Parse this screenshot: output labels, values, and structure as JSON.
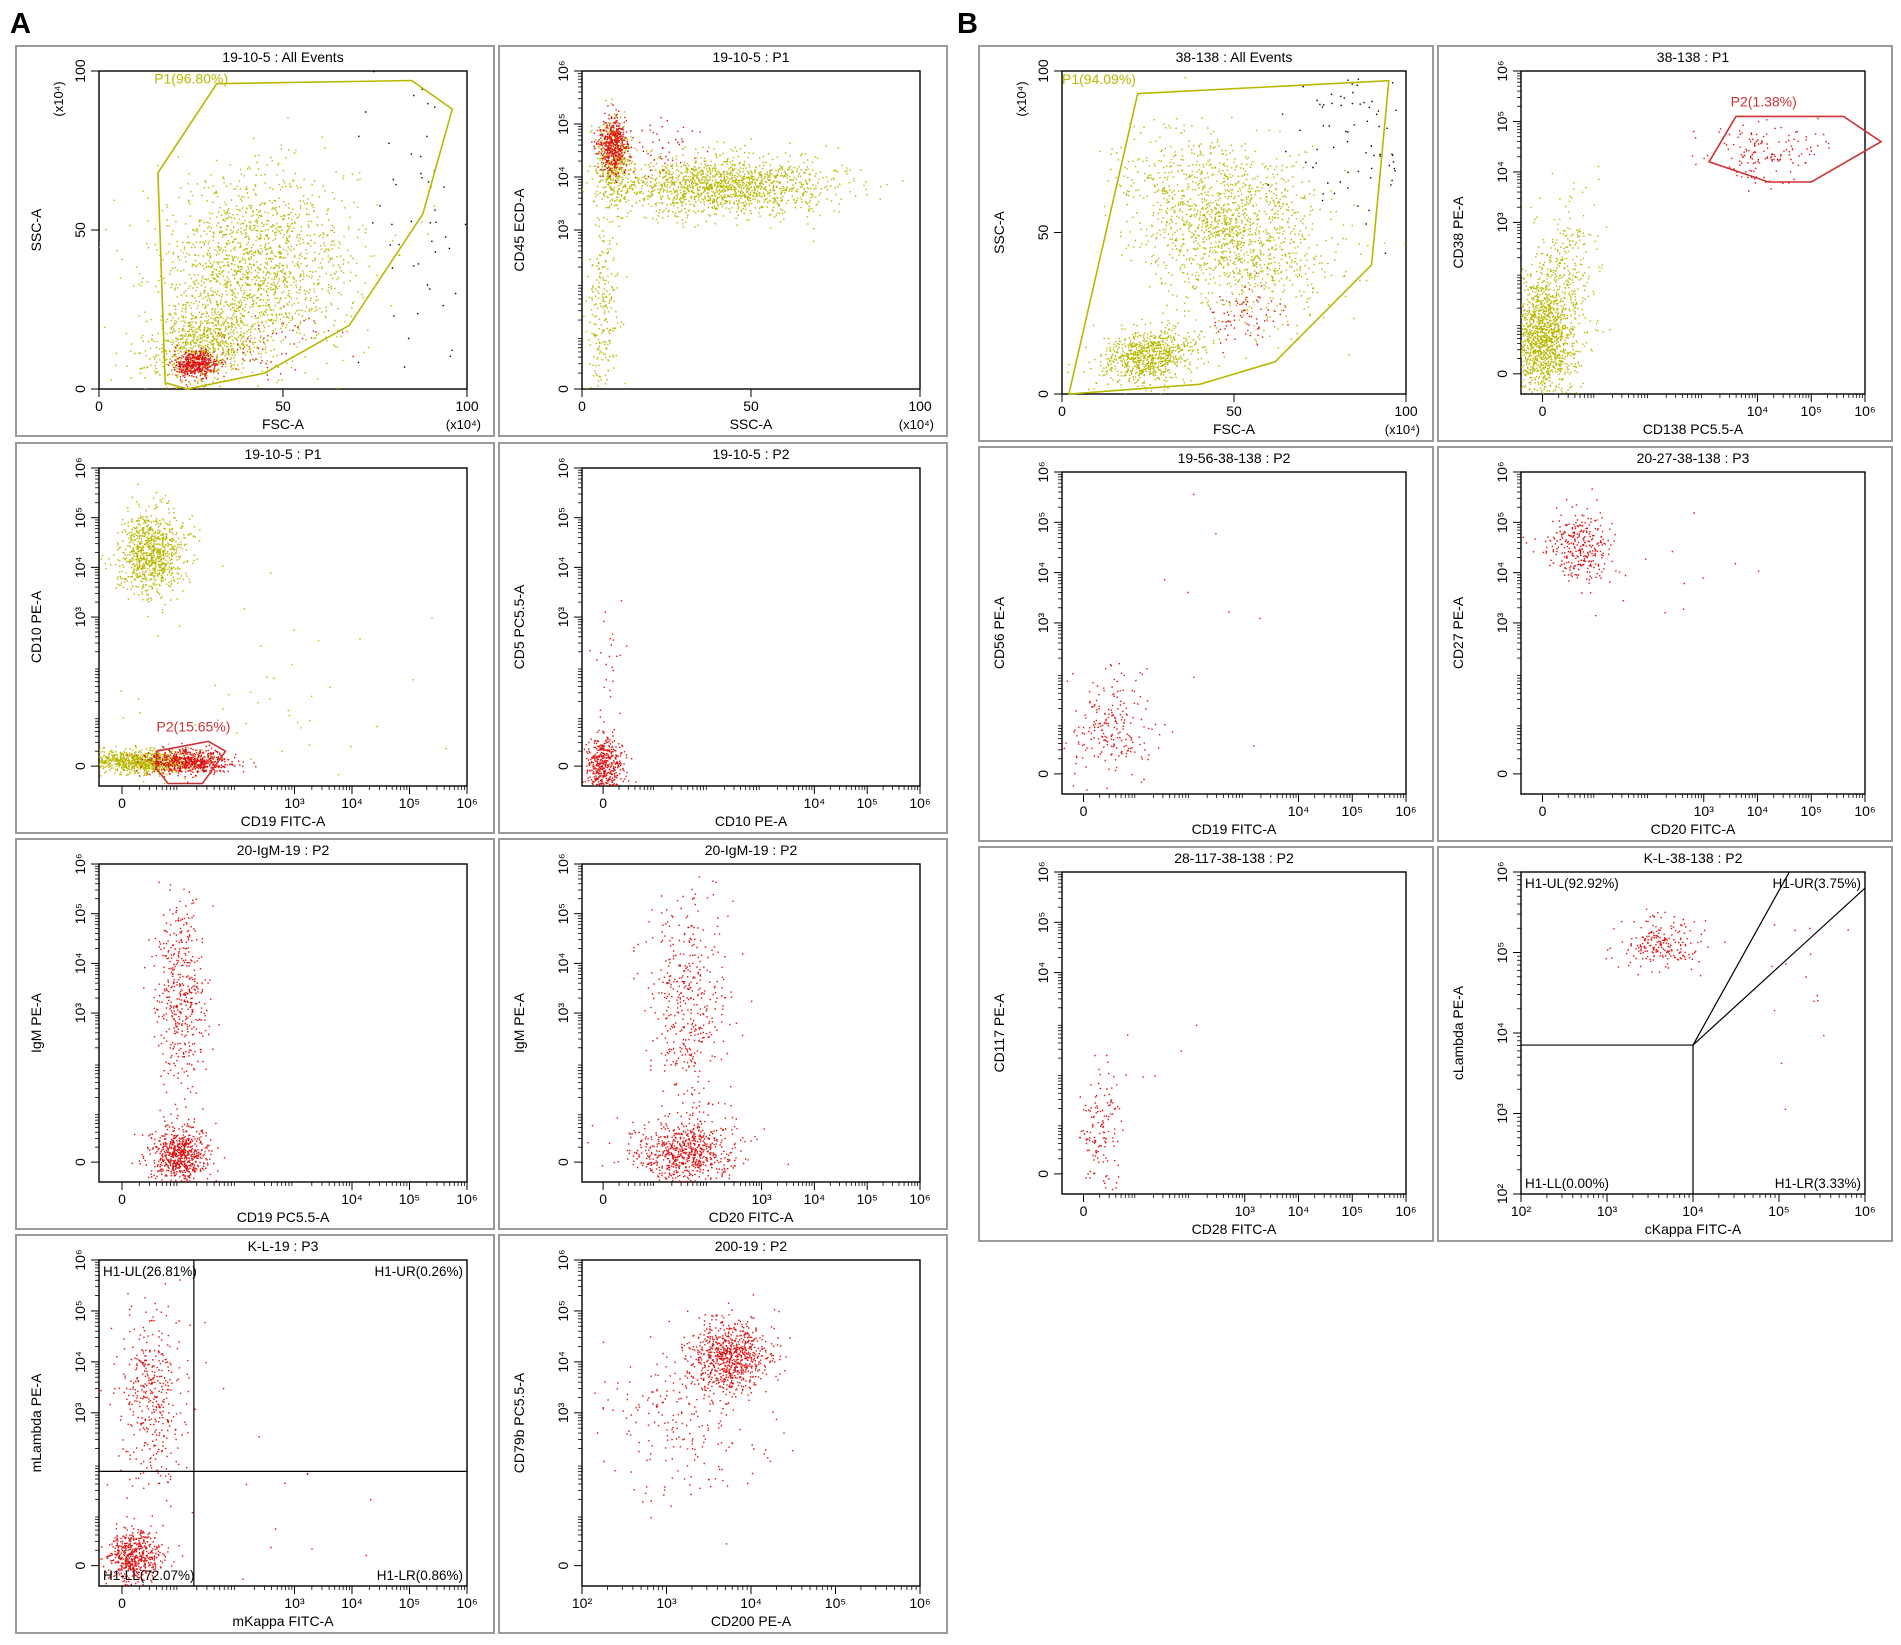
{
  "figure": {
    "label_a": "A",
    "label_b": "B"
  },
  "colors": {
    "yellow": "#b8b800",
    "red": "#e01010",
    "gate_red": "#cc3333",
    "black": "#000000"
  },
  "chart_data": [
    {
      "id": "a1",
      "type": "scatter",
      "title": "19-10-5 : All Events",
      "xlabel": "FSC-A",
      "ylabel": "SSC-A",
      "scale": "lin",
      "xunit": "(x10⁴)",
      "yunit": "(x10⁴)",
      "xticks": [
        "0",
        "50",
        "100"
      ],
      "yticks": [
        "0",
        "50",
        "100"
      ],
      "xlim": [
        0,
        100
      ],
      "ylim": [
        0,
        100
      ],
      "clusters": [
        {
          "color": "yellow",
          "cx": 42,
          "cy": 38,
          "sx": 14,
          "sy": 14,
          "n": 1700,
          "rot": 0.75
        },
        {
          "color": "yellow",
          "cx": 28,
          "cy": 14,
          "sx": 8,
          "sy": 6,
          "n": 700,
          "rot": 0.3
        },
        {
          "color": "red",
          "cx": 26,
          "cy": 8,
          "sx": 3,
          "sy": 2,
          "n": 450,
          "rot": 0
        },
        {
          "color": "red",
          "cx": 45,
          "cy": 15,
          "sx": 9,
          "sy": 4,
          "n": 60,
          "rot": 0.3
        },
        {
          "color": "black",
          "cx": 85,
          "cy": 55,
          "sx": 8,
          "sy": 25,
          "n": 50,
          "rot": 0
        }
      ],
      "gates": [
        {
          "color": "yellow",
          "name": "P1(96.80%)",
          "label_at": [
            15,
            96
          ],
          "points": [
            [
              18,
              2
            ],
            [
              16,
              68
            ],
            [
              32,
              96
            ],
            [
              85,
              97
            ],
            [
              96,
              88
            ],
            [
              88,
              55
            ],
            [
              68,
              20
            ],
            [
              45,
              5
            ],
            [
              24,
              0
            ]
          ]
        }
      ]
    },
    {
      "id": "a2",
      "type": "scatter",
      "title": "19-10-5 : P1",
      "xlabel": "SSC-A",
      "ylabel": "CD45 ECD-A",
      "scale": "lin-log",
      "xunit": "(x10⁴)",
      "xticks": [
        "0",
        "50",
        "100"
      ],
      "yticks": [
        "0",
        "10³",
        "10⁴",
        "10⁵",
        "10⁶"
      ],
      "xlim": [
        0,
        100
      ],
      "ylim": [
        0,
        6
      ],
      "clusters": [
        {
          "color": "yellow",
          "cx": 40,
          "cy": 3.85,
          "sx": 16,
          "sy": 0.28,
          "n": 1500,
          "rot": 0
        },
        {
          "color": "yellow",
          "cx": 9,
          "cy": 4.3,
          "sx": 3,
          "sy": 0.4,
          "n": 400,
          "rot": 0
        },
        {
          "color": "yellow",
          "cx": 6,
          "cy": 1.5,
          "sx": 2.5,
          "sy": 1.0,
          "n": 250,
          "rot": 0
        },
        {
          "color": "red",
          "cx": 9,
          "cy": 4.6,
          "sx": 2.2,
          "sy": 0.26,
          "n": 450,
          "rot": 0
        },
        {
          "color": "red",
          "cx": 22,
          "cy": 4.6,
          "sx": 6,
          "sy": 0.25,
          "n": 50,
          "rot": 0
        }
      ],
      "gates": []
    },
    {
      "id": "a3",
      "type": "scatter",
      "title": "19-10-5 : P1",
      "xlabel": "CD19 FITC-A",
      "ylabel": "CD10 PE-A",
      "scale": "log",
      "xticks": [
        "0",
        "10³",
        "10⁴",
        "10⁵",
        "10⁶"
      ],
      "yticks": [
        "0",
        "10³",
        "10⁴",
        "10⁵",
        "10⁶"
      ],
      "xlim": [
        -0.4,
        6
      ],
      "ylim": [
        -0.4,
        6
      ],
      "clusters": [
        {
          "color": "yellow",
          "cx": 0.5,
          "cy": 4.3,
          "sx": 0.28,
          "sy": 0.42,
          "n": 900,
          "rot": 0
        },
        {
          "color": "yellow",
          "cx": 0.3,
          "cy": 0.1,
          "sx": 0.45,
          "sy": 0.12,
          "n": 900,
          "rot": 0
        },
        {
          "color": "red",
          "cx": 1.2,
          "cy": 0.1,
          "sx": 0.35,
          "sy": 0.12,
          "n": 600,
          "rot": 0
        },
        {
          "color": "yellow",
          "cx": 2.5,
          "cy": 1.5,
          "sx": 1.2,
          "sy": 1.1,
          "n": 40,
          "rot": 0
        }
      ],
      "gates": [
        {
          "color": "gate_red",
          "name": "P2(15.65%)",
          "label_at": [
            0.6,
            0.7
          ],
          "points": [
            [
              0.6,
              0.3
            ],
            [
              1.5,
              0.5
            ],
            [
              1.8,
              0.3
            ],
            [
              1.4,
              -0.35
            ],
            [
              0.8,
              -0.35
            ],
            [
              0.6,
              -0.05
            ]
          ]
        }
      ]
    },
    {
      "id": "a4",
      "type": "scatter",
      "title": "19-10-5 : P2",
      "xlabel": "CD10 PE-A",
      "ylabel": "CD5 PC5.5-A",
      "scale": "log",
      "xticks": [
        "0",
        "10⁴",
        "10⁵",
        "10⁶"
      ],
      "yticks": [
        "0",
        "10³",
        "10⁴",
        "10⁵",
        "10⁶"
      ],
      "xlim": [
        -0.4,
        6
      ],
      "ylim": [
        -0.4,
        6
      ],
      "clusters": [
        {
          "color": "red",
          "cx": 0.0,
          "cy": 0.0,
          "sx": 0.18,
          "sy": 0.3,
          "n": 450,
          "rot": 0
        },
        {
          "color": "red",
          "cx": 0.1,
          "cy": 2.0,
          "sx": 0.15,
          "sy": 0.6,
          "n": 25,
          "rot": 0
        }
      ],
      "gates": []
    },
    {
      "id": "a5",
      "type": "scatter",
      "title": "20-IgM-19 : P2",
      "xlabel": "CD19 PC5.5-A",
      "ylabel": "IgM PE-A",
      "scale": "log",
      "xticks": [
        "0",
        "10⁴",
        "10⁵",
        "10⁶"
      ],
      "yticks": [
        "0",
        "10³",
        "10⁴",
        "10⁵",
        "10⁶"
      ],
      "xlim": [
        -0.4,
        6
      ],
      "ylim": [
        -0.4,
        6
      ],
      "clusters": [
        {
          "color": "red",
          "cx": 1.0,
          "cy": 0.15,
          "sx": 0.25,
          "sy": 0.3,
          "n": 650,
          "rot": 0
        },
        {
          "color": "red",
          "cx": 1.0,
          "cy": 3.4,
          "sx": 0.22,
          "sy": 1.0,
          "n": 450,
          "rot": 0
        }
      ],
      "gates": []
    },
    {
      "id": "a6",
      "type": "scatter",
      "title": "20-IgM-19 : P2",
      "xlabel": "CD20 FITC-A",
      "ylabel": "IgM PE-A",
      "scale": "log",
      "xticks": [
        "0",
        "10³",
        "10⁴",
        "10⁵",
        "10⁶"
      ],
      "yticks": [
        "0",
        "10³",
        "10⁴",
        "10⁵",
        "10⁶"
      ],
      "xlim": [
        -0.4,
        6
      ],
      "ylim": [
        -0.4,
        6
      ],
      "clusters": [
        {
          "color": "red",
          "cx": 1.55,
          "cy": 0.2,
          "sx": 0.5,
          "sy": 0.32,
          "n": 700,
          "rot": 0
        },
        {
          "color": "red",
          "cx": 1.6,
          "cy": 3.2,
          "sx": 0.4,
          "sy": 1.1,
          "n": 450,
          "rot": 0
        }
      ],
      "gates": []
    },
    {
      "id": "a7",
      "type": "scatter",
      "title": "K-L-19 : P3",
      "xlabel": "mKappa FITC-A",
      "ylabel": "mLambda PE-A",
      "scale": "log",
      "xticks": [
        "0",
        "10³",
        "10⁴",
        "10⁵",
        "10⁶"
      ],
      "yticks": [
        "0",
        "10³",
        "10⁴",
        "10⁵",
        "10⁶"
      ],
      "xlim": [
        -0.4,
        6
      ],
      "ylim": [
        -0.4,
        6
      ],
      "clusters": [
        {
          "color": "red",
          "cx": 0.2,
          "cy": 0.2,
          "sx": 0.25,
          "sy": 0.28,
          "n": 550,
          "rot": 0
        },
        {
          "color": "red",
          "cx": 0.5,
          "cy": 3.3,
          "sx": 0.3,
          "sy": 0.9,
          "n": 400,
          "rot": 0
        },
        {
          "color": "red",
          "cx": 2.8,
          "cy": 0.8,
          "sx": 0.9,
          "sy": 0.8,
          "n": 12,
          "rot": 0
        }
      ],
      "quad": {
        "type": "cross",
        "x": 1.25,
        "y": 1.85,
        "labels": {
          "UL": "H1-UL(26.81%)",
          "UR": "H1-UR(0.26%)",
          "LL": "H1-LL(72.07%)",
          "LR": "H1-LR(0.86%)"
        }
      }
    },
    {
      "id": "a8",
      "type": "scatter",
      "title": "200-19 : P2",
      "xlabel": "CD200 PE-A",
      "ylabel": "CD79b PC5.5-A",
      "scale": "log",
      "xticks": [
        "10²",
        "10³",
        "10⁴",
        "10⁵",
        "10⁶"
      ],
      "yticks": [
        "0",
        "10³",
        "10⁴",
        "10⁵",
        "10⁶"
      ],
      "xlim": [
        2,
        6
      ],
      "ylim": [
        -0.4,
        6
      ],
      "clusters": [
        {
          "color": "red",
          "cx": 3.75,
          "cy": 4.1,
          "sx": 0.25,
          "sy": 0.35,
          "n": 800,
          "rot": 0.3
        },
        {
          "color": "red",
          "cx": 3.2,
          "cy": 2.8,
          "sx": 0.45,
          "sy": 0.8,
          "n": 220,
          "rot": 0.6
        }
      ],
      "gates": []
    },
    {
      "id": "b1",
      "type": "scatter",
      "title": "38-138 : All Events",
      "xlabel": "FSC-A",
      "ylabel": "SSC-A",
      "scale": "lin",
      "xunit": "(x10⁴)",
      "yunit": "(x10⁴)",
      "xticks": [
        "0",
        "50",
        "100"
      ],
      "yticks": [
        "0",
        "50",
        "100"
      ],
      "xlim": [
        0,
        100
      ],
      "ylim": [
        0,
        100
      ],
      "clusters": [
        {
          "color": "yellow",
          "cx": 48,
          "cy": 52,
          "sx": 11,
          "sy": 16,
          "n": 1600,
          "rot": 1.0
        },
        {
          "color": "yellow",
          "cx": 25,
          "cy": 12,
          "sx": 7,
          "sy": 4,
          "n": 800,
          "rot": 0.2
        },
        {
          "color": "red",
          "cx": 52,
          "cy": 24,
          "sx": 6,
          "sy": 5,
          "n": 80,
          "rot": 0
        },
        {
          "color": "black",
          "cx": 85,
          "cy": 80,
          "sx": 10,
          "sy": 12,
          "n": 80,
          "rot": 0
        }
      ],
      "gates": [
        {
          "color": "yellow",
          "name": "P1(94.09%)",
          "label_at": [
            0,
            96
          ],
          "points": [
            [
              2,
              0
            ],
            [
              22,
              93
            ],
            [
              95,
              97
            ],
            [
              90,
              40
            ],
            [
              62,
              10
            ],
            [
              40,
              3
            ]
          ]
        }
      ]
    },
    {
      "id": "b2",
      "type": "scatter",
      "title": "38-138 : P1",
      "xlabel": "CD138 PC5.5-A",
      "ylabel": "CD38 PE-A",
      "scale": "log",
      "xticks": [
        "0",
        "10⁴",
        "10⁵",
        "10⁶"
      ],
      "yticks": [
        "0",
        "10³",
        "10⁴",
        "10⁵",
        "10⁶"
      ],
      "xlim": [
        -0.4,
        6
      ],
      "ylim": [
        -0.4,
        6
      ],
      "clusters": [
        {
          "color": "yellow",
          "cx": 0.0,
          "cy": 0.7,
          "sx": 0.3,
          "sy": 0.6,
          "n": 1300,
          "rot": 0
        },
        {
          "color": "yellow",
          "cx": 0.4,
          "cy": 1.9,
          "sx": 0.3,
          "sy": 0.9,
          "n": 300,
          "rot": 0
        },
        {
          "color": "red",
          "cx": 4.1,
          "cy": 4.4,
          "sx": 0.5,
          "sy": 0.3,
          "n": 150,
          "rot": 0
        }
      ],
      "gates": [
        {
          "color": "gate_red",
          "name": "P2(1.38%)",
          "label_at": [
            3.5,
            5.3
          ],
          "points": [
            [
              3.1,
              4.2
            ],
            [
              3.6,
              5.1
            ],
            [
              5.6,
              5.1
            ],
            [
              6.3,
              4.6
            ],
            [
              5.0,
              3.8
            ],
            [
              4.2,
              3.8
            ]
          ]
        }
      ]
    },
    {
      "id": "b3",
      "type": "scatter",
      "title": "19-56-38-138 : P2",
      "xlabel": "CD19 FITC-A",
      "ylabel": "CD56 PE-A",
      "scale": "log",
      "xticks": [
        "0",
        "10⁴",
        "10⁵",
        "10⁶"
      ],
      "yticks": [
        "0",
        "10³",
        "10⁴",
        "10⁵",
        "10⁶"
      ],
      "xlim": [
        -0.4,
        6
      ],
      "ylim": [
        -0.4,
        6
      ],
      "clusters": [
        {
          "color": "red",
          "cx": 0.5,
          "cy": 0.9,
          "sx": 0.4,
          "sy": 0.5,
          "n": 220,
          "rot": 0
        },
        {
          "color": "red",
          "cx": 2.5,
          "cy": 3.5,
          "sx": 1.5,
          "sy": 1.5,
          "n": 8,
          "rot": 0
        }
      ],
      "gates": []
    },
    {
      "id": "b4",
      "type": "scatter",
      "title": "20-27-38-138 : P3",
      "xlabel": "CD20 FITC-A",
      "ylabel": "CD27 PE-A",
      "scale": "log",
      "xticks": [
        "0",
        "10³",
        "10⁴",
        "10⁵",
        "10⁶"
      ],
      "yticks": [
        "0",
        "10³",
        "10⁴",
        "10⁵",
        "10⁶"
      ],
      "xlim": [
        -0.4,
        6
      ],
      "ylim": [
        -0.4,
        6
      ],
      "clusters": [
        {
          "color": "red",
          "cx": 0.7,
          "cy": 4.5,
          "sx": 0.3,
          "sy": 0.35,
          "n": 300,
          "rot": 0
        },
        {
          "color": "red",
          "cx": 1.8,
          "cy": 4.0,
          "sx": 0.9,
          "sy": 0.6,
          "n": 15,
          "rot": 0
        }
      ],
      "gates": []
    },
    {
      "id": "b5",
      "type": "scatter",
      "title": "28-117-38-138 : P2",
      "xlabel": "CD28 FITC-A",
      "ylabel": "CD117 PE-A",
      "scale": "log",
      "xticks": [
        "0",
        "10³",
        "10⁴",
        "10⁵",
        "10⁶"
      ],
      "yticks": [
        "0",
        "10⁴",
        "10⁵",
        "10⁶"
      ],
      "xlim": [
        -0.4,
        6
      ],
      "ylim": [
        -0.4,
        6
      ],
      "clusters": [
        {
          "color": "red",
          "cx": 0.3,
          "cy": 0.8,
          "sx": 0.2,
          "sy": 0.6,
          "n": 140,
          "rot": 0
        },
        {
          "color": "red",
          "cx": 1.8,
          "cy": 2.5,
          "sx": 1.0,
          "sy": 1.2,
          "n": 5,
          "rot": 0
        }
      ],
      "gates": []
    },
    {
      "id": "b6",
      "type": "scatter",
      "title": "K-L-38-138 : P2",
      "xlabel": "cKappa FITC-A",
      "ylabel": "cLambda PE-A",
      "scale": "log",
      "xticks": [
        "10²",
        "10³",
        "10⁴",
        "10⁵",
        "10⁶"
      ],
      "yticks": [
        "10²",
        "10³",
        "10⁴",
        "10⁵",
        "10⁶"
      ],
      "xlim": [
        2,
        6
      ],
      "ylim": [
        2,
        6
      ],
      "clusters": [
        {
          "color": "red",
          "cx": 3.6,
          "cy": 5.1,
          "sx": 0.25,
          "sy": 0.15,
          "n": 220,
          "rot": 0
        },
        {
          "color": "red",
          "cx": 5.3,
          "cy": 4.5,
          "sx": 0.3,
          "sy": 0.5,
          "n": 15,
          "rot": 0
        }
      ],
      "quad": {
        "type": "hinge",
        "x": 4.0,
        "y": 3.85,
        "labels": {
          "UL": "H1-UL(92.92%)",
          "UR": "H1-UR(3.75%)",
          "LL": "H1-LL(0.00%)",
          "LR": "H1-LR(3.33%)"
        }
      }
    }
  ]
}
